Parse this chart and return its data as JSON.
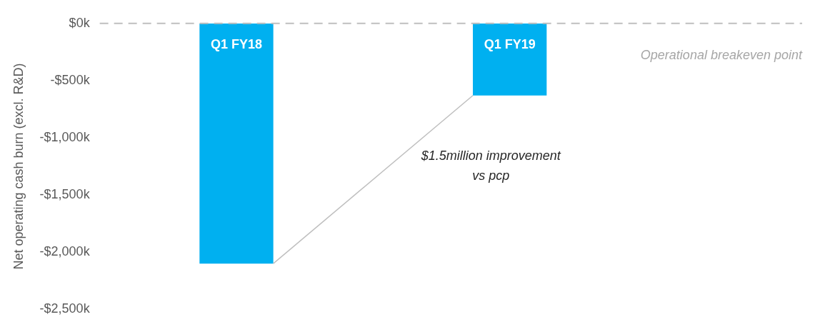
{
  "chart_data": {
    "type": "bar",
    "ylabel": "Net operating cash burn (excl. R&D)",
    "categories": [
      "Q1 FY18",
      "Q1 FY19"
    ],
    "values": [
      -2100,
      -630
    ],
    "color": "#00b0f0",
    "ylim": [
      -2500,
      0
    ],
    "yticks": [
      {
        "value": -2500,
        "label": "-$2,500k"
      },
      {
        "value": -2000,
        "label": "-$2,000k"
      },
      {
        "value": -1500,
        "label": "-$1,500k"
      },
      {
        "value": -1000,
        "label": "-$1,000k"
      },
      {
        "value": -500,
        "label": "-$500k"
      },
      {
        "value": 0,
        "label": "$0k"
      }
    ],
    "ref_lines": [
      {
        "axis": "y",
        "value": 0,
        "label": "Operational breakeven point",
        "color": "#bfbfbf",
        "line_style": "dashed"
      }
    ],
    "annotations": [
      "$1.5million improvement vs pcp"
    ],
    "grid": false,
    "legend": false
  }
}
